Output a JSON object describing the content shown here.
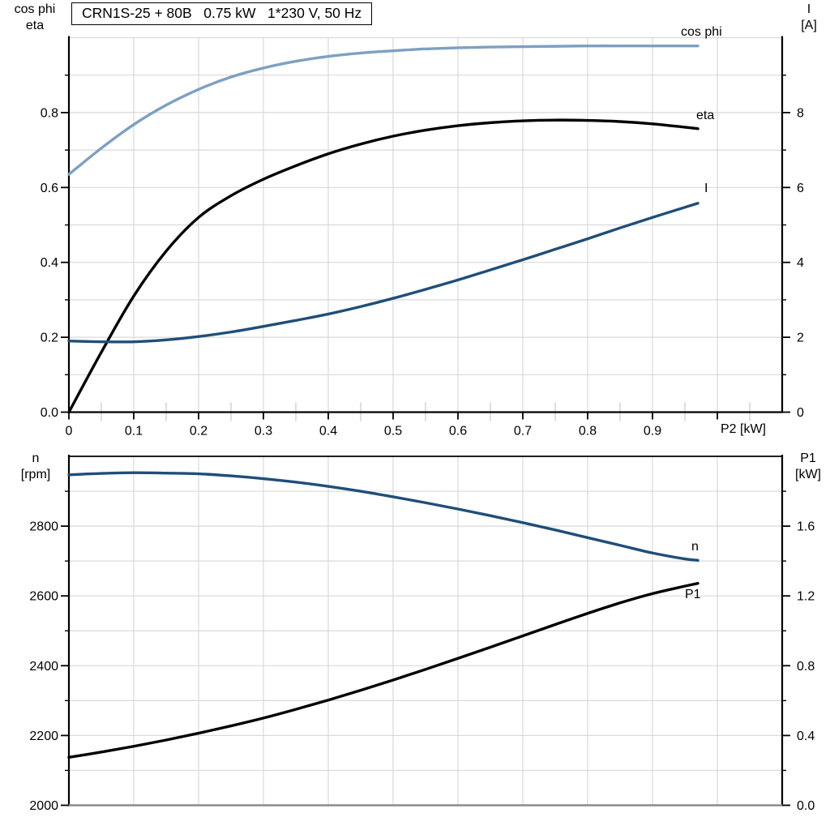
{
  "title": "CRN1S-25 + 80B   0.75 kW   1*230 V, 50 Hz",
  "colors": {
    "grid": "#d9d9d9",
    "minor_tick_gray": "#c8c8c8",
    "axis": "#000000",
    "bottom_border_gray": "#8c8c8c",
    "curve_light_blue": "#7da0c2",
    "curve_dark_blue": "#1f4e79",
    "curve_black": "#000000",
    "label_blue": "#2a6ca6"
  },
  "chart_data": [
    {
      "id": "electrical-curves",
      "type": "line",
      "x": [
        0,
        0.05,
        0.1,
        0.15,
        0.2,
        0.25,
        0.3,
        0.35,
        0.4,
        0.45,
        0.5,
        0.55,
        0.6,
        0.65,
        0.7,
        0.75,
        0.8,
        0.85,
        0.9,
        0.95,
        0.97
      ],
      "x_axis": {
        "label": "P2 [kW]",
        "tick_labels": [
          "0",
          "0.1",
          "0.2",
          "0.3",
          "0.4",
          "0.5",
          "0.6",
          "0.7",
          "0.8",
          "0.9"
        ],
        "tick_values": [
          0,
          0.1,
          0.2,
          0.3,
          0.4,
          0.5,
          0.6,
          0.7,
          0.8,
          0.9
        ],
        "range": [
          0,
          1.1
        ],
        "grid_step": 0.1,
        "grid_max": 1.0,
        "minor_step": 0.05
      },
      "left_axis": {
        "title_lines": [
          "cos phi",
          "eta"
        ],
        "tick_labels": [
          "0.8",
          "0.6",
          "0.4",
          "0.2",
          "0.0"
        ],
        "tick_values": [
          0.8,
          0.6,
          0.4,
          0.2,
          0
        ],
        "range": [
          0,
          1.0
        ],
        "minor_step": 0.1,
        "grid_step": 0.1
      },
      "right_axis": {
        "title_lines": [
          "I",
          "[A]"
        ],
        "tick_labels": [
          "8",
          "6",
          "4",
          "2",
          "0"
        ],
        "tick_values": [
          8,
          6,
          4,
          2,
          0
        ],
        "range": [
          0,
          10
        ],
        "minor_step": 1
      },
      "series": [
        {
          "name": "cos phi",
          "axis": "left",
          "color": "#7da0c2",
          "label_color": "#7da0c2",
          "values": [
            0.635,
            0.705,
            0.768,
            0.82,
            0.862,
            0.895,
            0.919,
            0.937,
            0.95,
            0.959,
            0.965,
            0.97,
            0.973,
            0.975,
            0.976,
            0.977,
            0.978,
            0.978,
            0.978,
            0.978,
            0.978
          ]
        },
        {
          "name": "eta",
          "axis": "left",
          "color": "#000000",
          "label_color": "#000000",
          "values": [
            0.0,
            0.16,
            0.31,
            0.43,
            0.52,
            0.578,
            0.622,
            0.658,
            0.69,
            0.716,
            0.737,
            0.753,
            0.765,
            0.773,
            0.778,
            0.78,
            0.779,
            0.776,
            0.77,
            0.761,
            0.757
          ]
        },
        {
          "name": "I",
          "axis": "right",
          "color": "#1f4e79",
          "label_color": "#2a6ca6",
          "values": [
            1.9,
            1.88,
            1.88,
            1.93,
            2.02,
            2.14,
            2.29,
            2.45,
            2.62,
            2.82,
            3.04,
            3.28,
            3.53,
            3.8,
            4.07,
            4.35,
            4.63,
            4.92,
            5.2,
            5.47,
            5.58
          ]
        }
      ]
    },
    {
      "id": "speed-power-curves",
      "type": "line",
      "x": [
        0,
        0.05,
        0.1,
        0.15,
        0.2,
        0.25,
        0.3,
        0.35,
        0.4,
        0.45,
        0.5,
        0.55,
        0.6,
        0.65,
        0.7,
        0.75,
        0.8,
        0.85,
        0.9,
        0.95,
        0.97
      ],
      "x_axis": {
        "label": "",
        "tick_labels": [],
        "tick_values": [],
        "range": [
          0,
          1.1
        ],
        "grid_step": 0.1,
        "grid_max": 1.0
      },
      "left_axis": {
        "title_lines": [
          "n",
          "[rpm]"
        ],
        "tick_labels": [
          "2800",
          "2600",
          "2400",
          "2200",
          "2000"
        ],
        "tick_values": [
          2800,
          2600,
          2400,
          2200,
          2000
        ],
        "range": [
          2000,
          3000
        ],
        "minor_step": 100,
        "grid_step": 100
      },
      "right_axis": {
        "title_lines": [
          "P1",
          "[kW]"
        ],
        "tick_labels": [
          "1.6",
          "1.2",
          "0.8",
          "0.4",
          "0.0"
        ],
        "tick_values": [
          1.6,
          1.2,
          0.8,
          0.4,
          0
        ],
        "range": [
          0,
          2.0
        ],
        "minor_step": 0.2
      },
      "series": [
        {
          "name": "n",
          "axis": "left",
          "color": "#1f4e79",
          "label_color": "#2a6ca6",
          "values": [
            2947,
            2951,
            2953,
            2952,
            2950,
            2944,
            2936,
            2926,
            2914,
            2900,
            2884,
            2867,
            2849,
            2830,
            2810,
            2789,
            2767,
            2745,
            2723,
            2706,
            2702
          ]
        },
        {
          "name": "P1",
          "axis": "right",
          "color": "#000000",
          "label_color": "#000000",
          "values": [
            0.275,
            0.305,
            0.338,
            0.374,
            0.413,
            0.455,
            0.5,
            0.55,
            0.603,
            0.659,
            0.718,
            0.779,
            0.842,
            0.906,
            0.971,
            1.036,
            1.1,
            1.16,
            1.213,
            1.256,
            1.272
          ]
        }
      ]
    }
  ]
}
